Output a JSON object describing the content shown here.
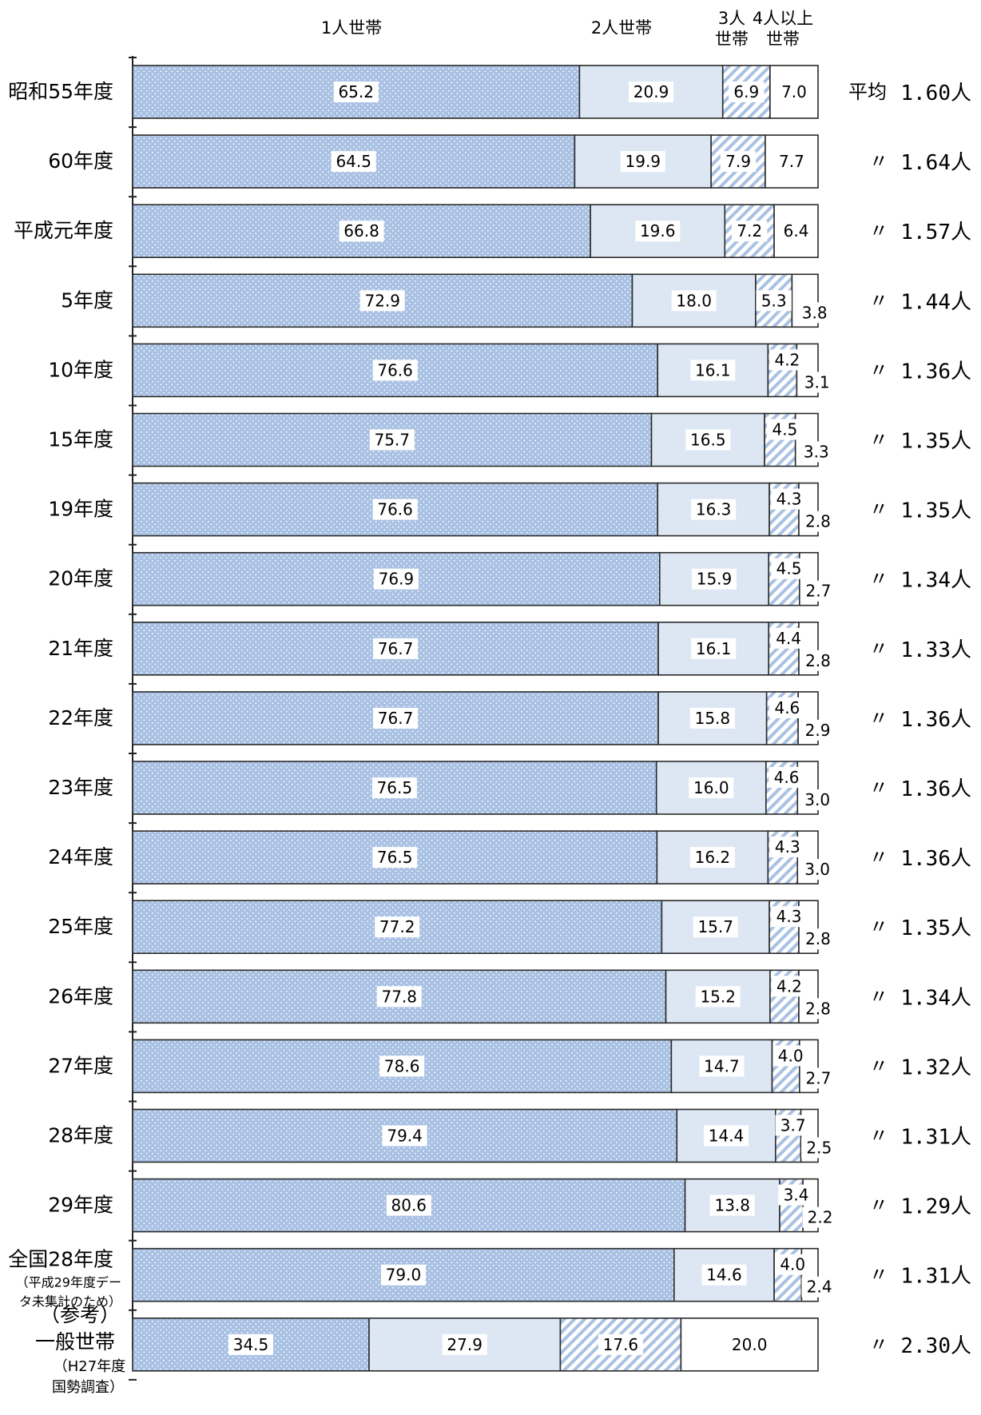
{
  "chart_data": {
    "type": "bar",
    "orientation": "horizontal",
    "stacked": true,
    "percent": true,
    "series": [
      {
        "name": "1人世帯",
        "color": "#a9c1e3",
        "pattern": "dots"
      },
      {
        "name": "2人世帯",
        "color": "#dde7f4",
        "pattern": "solid"
      },
      {
        "name": "3人世帯",
        "color": "#ffffff",
        "pattern": "diagonal"
      },
      {
        "name": "4人以上世帯",
        "color": "#ffffff",
        "pattern": "none"
      }
    ],
    "legend_top": [
      {
        "lines": [
          "1人世帯"
        ]
      },
      {
        "lines": [
          "2人世帯"
        ]
      },
      {
        "lines": [
          "3人",
          "世帯"
        ]
      },
      {
        "lines": [
          "4人以上",
          "世帯"
        ]
      }
    ],
    "rows": [
      {
        "label": [
          "昭和55年度"
        ],
        "values": [
          65.2,
          20.9,
          6.9,
          7.0
        ],
        "labels": [
          "65.2",
          "20.9",
          "6.9",
          "7.0"
        ],
        "prefix": "平均",
        "avg": "1.60人"
      },
      {
        "label": [
          "60年度"
        ],
        "values": [
          64.5,
          19.9,
          7.9,
          7.7
        ],
        "labels": [
          "64.5",
          "19.9",
          "7.9",
          "7.7"
        ],
        "prefix": "〃",
        "avg": "1.64人"
      },
      {
        "label": [
          "平成元年度"
        ],
        "values": [
          66.8,
          19.6,
          7.2,
          6.4
        ],
        "labels": [
          "66.8",
          "19.6",
          "7.2",
          "6.4"
        ],
        "prefix": "〃",
        "avg": "1.57人"
      },
      {
        "label": [
          "5年度"
        ],
        "values": [
          72.9,
          18.0,
          5.3,
          3.8
        ],
        "labels": [
          "72.9",
          "18.0",
          "5.3",
          "3.8"
        ],
        "prefix": "〃",
        "avg": "1.44人"
      },
      {
        "label": [
          "10年度"
        ],
        "values": [
          76.6,
          16.1,
          4.2,
          3.1
        ],
        "labels": [
          "76.6",
          "16.1",
          "4.2",
          "3.1"
        ],
        "prefix": "〃",
        "avg": "1.36人"
      },
      {
        "label": [
          "15年度"
        ],
        "values": [
          75.7,
          16.5,
          4.5,
          3.3
        ],
        "labels": [
          "75.7",
          "16.5",
          "4.5",
          "3.3"
        ],
        "prefix": "〃",
        "avg": "1.35人"
      },
      {
        "label": [
          "19年度"
        ],
        "values": [
          76.6,
          16.3,
          4.3,
          2.8
        ],
        "labels": [
          "76.6",
          "16.3",
          "4.3",
          "2.8"
        ],
        "prefix": "〃",
        "avg": "1.35人"
      },
      {
        "label": [
          "20年度"
        ],
        "values": [
          76.9,
          15.9,
          4.5,
          2.7
        ],
        "labels": [
          "76.9",
          "15.9",
          "4.5",
          "2.7"
        ],
        "prefix": "〃",
        "avg": "1.34人"
      },
      {
        "label": [
          "21年度"
        ],
        "values": [
          76.7,
          16.1,
          4.4,
          2.8
        ],
        "labels": [
          "76.7",
          "16.1",
          "4.4",
          "2.8"
        ],
        "prefix": "〃",
        "avg": "1.33人"
      },
      {
        "label": [
          "22年度"
        ],
        "values": [
          76.7,
          15.8,
          4.6,
          2.9
        ],
        "labels": [
          "76.7",
          "15.8",
          "4.6",
          "2.9"
        ],
        "prefix": "〃",
        "avg": "1.36人"
      },
      {
        "label": [
          "23年度"
        ],
        "values": [
          76.5,
          16.0,
          4.6,
          3.0
        ],
        "labels": [
          "76.5",
          "16.0",
          "4.6",
          "3.0"
        ],
        "prefix": "〃",
        "avg": "1.36人"
      },
      {
        "label": [
          "24年度"
        ],
        "values": [
          76.5,
          16.2,
          4.3,
          3.0
        ],
        "labels": [
          "76.5",
          "16.2",
          "4.3",
          "3.0"
        ],
        "prefix": "〃",
        "avg": "1.36人"
      },
      {
        "label": [
          "25年度"
        ],
        "values": [
          77.2,
          15.7,
          4.3,
          2.8
        ],
        "labels": [
          "77.2",
          "15.7",
          "4.3",
          "2.8"
        ],
        "prefix": "〃",
        "avg": "1.35人"
      },
      {
        "label": [
          "26年度"
        ],
        "values": [
          77.8,
          15.2,
          4.2,
          2.8
        ],
        "labels": [
          "77.8",
          "15.2",
          "4.2",
          "2.8"
        ],
        "prefix": "〃",
        "avg": "1.34人"
      },
      {
        "label": [
          "27年度"
        ],
        "values": [
          78.6,
          14.7,
          4.0,
          2.7
        ],
        "labels": [
          "78.6",
          "14.7",
          "4.0",
          "2.7"
        ],
        "prefix": "〃",
        "avg": "1.32人"
      },
      {
        "label": [
          "28年度"
        ],
        "values": [
          79.4,
          14.4,
          3.7,
          2.5
        ],
        "labels": [
          "79.4",
          "14.4",
          "3.7",
          "2.5"
        ],
        "prefix": "〃",
        "avg": "1.31人"
      },
      {
        "label": [
          "29年度"
        ],
        "values": [
          80.6,
          13.8,
          3.4,
          2.2
        ],
        "labels": [
          "80.6",
          "13.8",
          "3.4",
          "2.2"
        ],
        "prefix": "〃",
        "avg": "1.29人"
      },
      {
        "label": [
          "全国28年度",
          "（平成29年度デー",
          "タ未集計のため）"
        ],
        "values": [
          79.0,
          14.6,
          4.0,
          2.4
        ],
        "labels": [
          "79.0",
          "14.6",
          "4.0",
          "2.4"
        ],
        "prefix": "〃",
        "avg": "1.31人"
      },
      {
        "label": [
          "（参考）",
          "一般世帯",
          "（H27年度",
          "国勢調査）"
        ],
        "values": [
          34.5,
          27.9,
          17.6,
          20.0
        ],
        "labels": [
          "34.5",
          "27.9",
          "17.6",
          "20.0"
        ],
        "prefix": "〃",
        "avg": "2.30人"
      }
    ],
    "xlim": [
      0,
      100
    ],
    "grid": false,
    "legend_position": "top"
  }
}
